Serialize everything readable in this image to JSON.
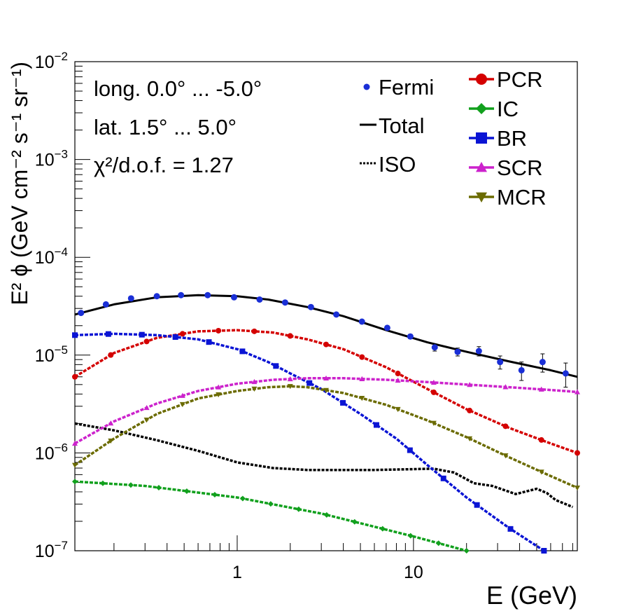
{
  "chart_data": {
    "type": "line",
    "xscale": "log",
    "yscale": "log",
    "xlim": [
      0.12,
      85
    ],
    "ylim": [
      1e-07,
      0.01
    ],
    "xlabel": "E (GeV)",
    "ylabel": "E² ϕ (GeV cm⁻² s⁻¹ sr⁻¹)",
    "x_ticks": [
      1,
      10
    ],
    "x_tick_labels": [
      "1",
      "10"
    ],
    "y_ticks": [
      1e-07,
      1e-06,
      1e-05,
      0.0001,
      0.001,
      0.01
    ],
    "y_tick_labels": [
      {
        "base": "10",
        "exp": "−7"
      },
      {
        "base": "10",
        "exp": "−6"
      },
      {
        "base": "10",
        "exp": "−5"
      },
      {
        "base": "10",
        "exp": "−4"
      },
      {
        "base": "10",
        "exp": "−3"
      },
      {
        "base": "10",
        "exp": "−2"
      }
    ],
    "annotations": [
      "long. 0.0° ... -5.0°",
      "lat. 1.5° ... 5.0°",
      "χ²/d.o.f. = 1.27"
    ],
    "points": {
      "name": "Fermi",
      "color": "#1a2fd6",
      "x": [
        0.13,
        0.18,
        0.25,
        0.35,
        0.48,
        0.68,
        0.96,
        1.34,
        1.87,
        2.62,
        3.65,
        5.1,
        7.1,
        9.6,
        13.2,
        17.8,
        23.5,
        31.0,
        41.0,
        54.0,
        73.0
      ],
      "y": [
        2.7e-05,
        3.3e-05,
        3.8e-05,
        4e-05,
        4.1e-05,
        4.1e-05,
        3.9e-05,
        3.7e-05,
        3.45e-05,
        3.1e-05,
        2.6e-05,
        2.2e-05,
        1.9e-05,
        1.55e-05,
        1.2e-05,
        1.08e-05,
        1.1e-05,
        8.5e-06,
        7e-06,
        8.5e-06,
        6.5e-06
      ],
      "yerr": [
        1e-06,
        1e-06,
        1e-06,
        1e-06,
        1e-06,
        1e-06,
        1e-06,
        1e-06,
        1e-06,
        1e-06,
        1e-06,
        8e-07,
        8e-07,
        8e-07,
        1e-06,
        1e-06,
        1.2e-06,
        1.3e-06,
        1.5e-06,
        1.8e-06,
        1.8e-06
      ]
    },
    "series": [
      {
        "name": "Total",
        "style": "solid",
        "color": "#000000",
        "x": [
          0.12,
          0.2,
          0.35,
          0.6,
          1.0,
          1.5,
          2.5,
          4.0,
          7.0,
          12.0,
          20.0,
          35.0,
          60.0,
          85.0
        ],
        "y": [
          2.6e-05,
          3.3e-05,
          3.9e-05,
          4.1e-05,
          4e-05,
          3.7e-05,
          3.1e-05,
          2.5e-05,
          1.8e-05,
          1.35e-05,
          1.08e-05,
          8.6e-06,
          7e-06,
          6e-06
        ]
      },
      {
        "name": "ISO",
        "style": "dotted",
        "color": "#000000",
        "x": [
          0.12,
          0.2,
          0.35,
          0.6,
          1.0,
          1.6,
          2.5,
          4.0,
          6.0,
          9.0,
          13.0,
          17.0,
          22.0,
          28.0,
          38.0,
          50.0,
          57.0,
          64.0,
          80.0
        ],
        "y": [
          2e-06,
          1.7e-06,
          1.35e-06,
          1.05e-06,
          8e-07,
          7e-07,
          6.7e-07,
          6.7e-07,
          6.7e-07,
          6.8e-07,
          6.9e-07,
          6.3e-07,
          4.9e-07,
          4.6e-07,
          3.8e-07,
          4.3e-07,
          3.9e-07,
          3.3e-07,
          2.8e-07
        ]
      },
      {
        "name": "PCR",
        "marker": "circle",
        "color": "#d40000",
        "x": [
          0.12,
          0.2,
          0.35,
          0.6,
          1.0,
          1.6,
          2.5,
          4.0,
          7.0,
          12.0,
          20.0,
          35.0,
          60.0,
          85.0
        ],
        "y": [
          6e-06,
          1.05e-05,
          1.5e-05,
          1.75e-05,
          1.8e-05,
          1.7e-05,
          1.45e-05,
          1.15e-05,
          7.5e-06,
          4.5e-06,
          2.8e-06,
          1.8e-06,
          1.25e-06,
          1e-06
        ]
      },
      {
        "name": "IC",
        "marker": "diamond",
        "color": "#11a01d",
        "x": [
          0.12,
          0.3,
          1.0,
          3.0,
          10.0,
          20.0
        ],
        "y": [
          5.1e-07,
          4.6e-07,
          3.5e-07,
          2.4e-07,
          1.4e-07,
          1e-07
        ]
      },
      {
        "name": "BR",
        "marker": "square",
        "color": "#0a14d4",
        "x": [
          0.12,
          0.2,
          0.35,
          0.6,
          1.0,
          1.5,
          2.0,
          3.0,
          5.0,
          8.0,
          12.0,
          20.0,
          35.0,
          55.0
        ],
        "y": [
          1.6e-05,
          1.65e-05,
          1.6e-05,
          1.45e-05,
          1.15e-05,
          8.5e-06,
          6.5e-06,
          4.5e-06,
          2.5e-06,
          1.4e-06,
          7.5e-07,
          3.5e-07,
          1.7e-07,
          1e-07
        ]
      },
      {
        "name": "SCR",
        "marker": "triangle-up",
        "color": "#cc22cc",
        "x": [
          0.12,
          0.2,
          0.35,
          0.6,
          1.0,
          1.6,
          2.5,
          4.0,
          7.0,
          12.0,
          20.0,
          35.0,
          60.0,
          85.0
        ],
        "y": [
          1.25e-06,
          2.1e-06,
          3.2e-06,
          4.3e-06,
          5.1e-06,
          5.6e-06,
          5.8e-06,
          5.8e-06,
          5.6e-06,
          5.3e-06,
          5e-06,
          4.7e-06,
          4.4e-06,
          4.2e-06
        ]
      },
      {
        "name": "MCR",
        "marker": "triangle-down",
        "color": "#6b6b00",
        "x": [
          0.12,
          0.2,
          0.35,
          0.6,
          1.0,
          1.5,
          2.0,
          2.5,
          4.0,
          7.0,
          12.0,
          20.0,
          35.0,
          60.0,
          85.0
        ],
        "y": [
          7.5e-07,
          1.4e-06,
          2.5e-06,
          3.6e-06,
          4.3e-06,
          4.7e-06,
          4.8e-06,
          4.7e-06,
          4.1e-06,
          3.1e-06,
          2.15e-06,
          1.45e-06,
          9e-07,
          5.8e-07,
          4.4e-07
        ]
      }
    ],
    "legend_left": [
      {
        "label": "Fermi",
        "symbol": "dot"
      },
      {
        "label": "Total",
        "symbol": "solid"
      },
      {
        "label": "ISO",
        "symbol": "dotted"
      }
    ],
    "legend_right": [
      {
        "label": "PCR",
        "symbol": "circle"
      },
      {
        "label": "IC",
        "symbol": "diamond"
      },
      {
        "label": "BR",
        "symbol": "square"
      },
      {
        "label": "SCR",
        "symbol": "triangle-up"
      },
      {
        "label": "MCR",
        "symbol": "triangle-down"
      }
    ],
    "legend_placement": "top-right"
  }
}
